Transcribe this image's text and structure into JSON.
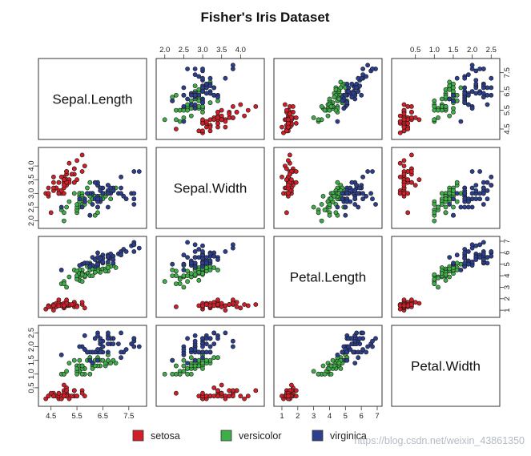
{
  "chart_data": {
    "type": "scatter",
    "subtype": "scatterplot-matrix",
    "title": "Fisher's Iris Dataset",
    "variables": [
      "Sepal.Length",
      "Sepal.Width",
      "Petal.Length",
      "Petal.Width"
    ],
    "ranges": {
      "Sepal.Length": [
        4.2,
        8.0
      ],
      "Sepal.Width": [
        1.9,
        4.5
      ],
      "Petal.Length": [
        0.8,
        7.0
      ],
      "Petal.Width": [
        0.0,
        2.6
      ]
    },
    "ticks": {
      "Sepal.Length": {
        "values": [
          4.5,
          5.5,
          6.5,
          7.5
        ],
        "labels": [
          "4.5",
          "5.5",
          "6.5",
          "7.5"
        ]
      },
      "Sepal.Width": {
        "values": [
          2.0,
          2.5,
          3.0,
          3.5,
          4.0
        ],
        "labels": [
          "2.0",
          "2.5",
          "3.0",
          "3.5",
          "4.0"
        ]
      },
      "Petal.Length": {
        "values": [
          1,
          2,
          3,
          4,
          5,
          6,
          7
        ],
        "labels": [
          "1",
          "2",
          "3",
          "4",
          "5",
          "6",
          "7"
        ]
      },
      "Petal.Width": {
        "values": [
          0.5,
          1.0,
          1.5,
          2.0,
          2.5
        ],
        "labels": [
          "0.5",
          "1.0",
          "1.5",
          "2.0",
          "2.5"
        ]
      }
    },
    "legend_position": "bottom",
    "series": [
      {
        "name": "setosa",
        "color": "#d21f27",
        "points": [
          [
            5.1,
            3.5,
            1.4,
            0.2
          ],
          [
            4.9,
            3.0,
            1.4,
            0.2
          ],
          [
            4.7,
            3.2,
            1.3,
            0.2
          ],
          [
            4.6,
            3.1,
            1.5,
            0.2
          ],
          [
            5.0,
            3.6,
            1.4,
            0.2
          ],
          [
            5.4,
            3.9,
            1.7,
            0.4
          ],
          [
            4.6,
            3.4,
            1.4,
            0.3
          ],
          [
            5.0,
            3.4,
            1.5,
            0.2
          ],
          [
            4.4,
            2.9,
            1.4,
            0.2
          ],
          [
            4.9,
            3.1,
            1.5,
            0.1
          ],
          [
            5.4,
            3.7,
            1.5,
            0.2
          ],
          [
            4.8,
            3.4,
            1.6,
            0.2
          ],
          [
            4.8,
            3.0,
            1.4,
            0.1
          ],
          [
            4.3,
            3.0,
            1.1,
            0.1
          ],
          [
            5.8,
            4.0,
            1.2,
            0.2
          ],
          [
            5.7,
            4.4,
            1.5,
            0.4
          ],
          [
            5.4,
            3.9,
            1.3,
            0.4
          ],
          [
            5.1,
            3.5,
            1.4,
            0.3
          ],
          [
            5.7,
            3.8,
            1.7,
            0.3
          ],
          [
            5.1,
            3.8,
            1.5,
            0.3
          ],
          [
            5.4,
            3.4,
            1.7,
            0.2
          ],
          [
            5.1,
            3.7,
            1.5,
            0.4
          ],
          [
            4.6,
            3.6,
            1.0,
            0.2
          ],
          [
            5.1,
            3.3,
            1.7,
            0.5
          ],
          [
            4.8,
            3.4,
            1.9,
            0.2
          ],
          [
            5.0,
            3.0,
            1.6,
            0.2
          ],
          [
            5.0,
            3.4,
            1.6,
            0.4
          ],
          [
            5.2,
            3.5,
            1.5,
            0.2
          ],
          [
            5.2,
            3.4,
            1.4,
            0.2
          ],
          [
            4.7,
            3.2,
            1.6,
            0.2
          ],
          [
            4.8,
            3.1,
            1.6,
            0.2
          ],
          [
            5.4,
            3.4,
            1.5,
            0.4
          ],
          [
            5.2,
            4.1,
            1.5,
            0.1
          ],
          [
            5.5,
            4.2,
            1.4,
            0.2
          ],
          [
            4.9,
            3.1,
            1.5,
            0.2
          ],
          [
            5.0,
            3.2,
            1.2,
            0.2
          ],
          [
            5.5,
            3.5,
            1.3,
            0.2
          ],
          [
            4.9,
            3.6,
            1.4,
            0.1
          ],
          [
            4.4,
            3.0,
            1.3,
            0.2
          ],
          [
            5.1,
            3.4,
            1.5,
            0.2
          ],
          [
            5.0,
            3.5,
            1.3,
            0.3
          ],
          [
            4.5,
            2.3,
            1.3,
            0.3
          ],
          [
            4.4,
            3.2,
            1.3,
            0.2
          ],
          [
            5.0,
            3.5,
            1.6,
            0.6
          ],
          [
            5.1,
            3.8,
            1.9,
            0.4
          ],
          [
            4.8,
            3.0,
            1.4,
            0.3
          ],
          [
            5.1,
            3.8,
            1.6,
            0.2
          ],
          [
            4.6,
            3.2,
            1.4,
            0.2
          ],
          [
            5.3,
            3.7,
            1.5,
            0.2
          ],
          [
            5.0,
            3.3,
            1.4,
            0.2
          ]
        ]
      },
      {
        "name": "versicolor",
        "color": "#3fae49",
        "points": [
          [
            7.0,
            3.2,
            4.7,
            1.4
          ],
          [
            6.4,
            3.2,
            4.5,
            1.5
          ],
          [
            6.9,
            3.1,
            4.9,
            1.5
          ],
          [
            5.5,
            2.3,
            4.0,
            1.3
          ],
          [
            6.5,
            2.8,
            4.6,
            1.5
          ],
          [
            5.7,
            2.8,
            4.5,
            1.3
          ],
          [
            6.3,
            3.3,
            4.7,
            1.6
          ],
          [
            4.9,
            2.4,
            3.3,
            1.0
          ],
          [
            6.6,
            2.9,
            4.6,
            1.3
          ],
          [
            5.2,
            2.7,
            3.9,
            1.4
          ],
          [
            5.0,
            2.0,
            3.5,
            1.0
          ],
          [
            5.9,
            3.0,
            4.2,
            1.5
          ],
          [
            6.0,
            2.2,
            4.0,
            1.0
          ],
          [
            6.1,
            2.9,
            4.7,
            1.4
          ],
          [
            5.6,
            2.9,
            3.6,
            1.3
          ],
          [
            6.7,
            3.1,
            4.4,
            1.4
          ],
          [
            5.6,
            3.0,
            4.5,
            1.5
          ],
          [
            5.8,
            2.7,
            4.1,
            1.0
          ],
          [
            6.2,
            2.2,
            4.5,
            1.5
          ],
          [
            5.6,
            2.5,
            3.9,
            1.1
          ],
          [
            5.9,
            3.2,
            4.8,
            1.8
          ],
          [
            6.1,
            2.8,
            4.0,
            1.3
          ],
          [
            6.3,
            2.5,
            4.9,
            1.5
          ],
          [
            6.1,
            2.8,
            4.7,
            1.2
          ],
          [
            6.4,
            2.9,
            4.3,
            1.3
          ],
          [
            6.6,
            3.0,
            4.4,
            1.4
          ],
          [
            6.8,
            2.8,
            4.8,
            1.4
          ],
          [
            6.7,
            3.0,
            5.0,
            1.7
          ],
          [
            6.0,
            2.9,
            4.5,
            1.5
          ],
          [
            5.7,
            2.6,
            3.5,
            1.0
          ],
          [
            5.5,
            2.4,
            3.8,
            1.1
          ],
          [
            5.5,
            2.4,
            3.7,
            1.0
          ],
          [
            5.8,
            2.7,
            3.9,
            1.2
          ],
          [
            6.0,
            2.7,
            5.1,
            1.6
          ],
          [
            5.4,
            3.0,
            4.5,
            1.5
          ],
          [
            6.0,
            3.4,
            4.5,
            1.6
          ],
          [
            6.7,
            3.1,
            4.7,
            1.5
          ],
          [
            6.3,
            2.3,
            4.4,
            1.3
          ],
          [
            5.6,
            3.0,
            4.1,
            1.3
          ],
          [
            5.5,
            2.5,
            4.0,
            1.3
          ],
          [
            5.5,
            2.6,
            4.4,
            1.2
          ],
          [
            6.1,
            3.0,
            4.6,
            1.4
          ],
          [
            5.8,
            2.6,
            4.0,
            1.2
          ],
          [
            5.0,
            2.3,
            3.3,
            1.0
          ],
          [
            5.6,
            2.7,
            4.2,
            1.3
          ],
          [
            5.7,
            3.0,
            4.2,
            1.2
          ],
          [
            5.7,
            2.9,
            4.2,
            1.3
          ],
          [
            6.2,
            2.9,
            4.3,
            1.3
          ],
          [
            5.1,
            2.5,
            3.0,
            1.1
          ],
          [
            5.7,
            2.8,
            4.1,
            1.3
          ]
        ]
      },
      {
        "name": "virginica",
        "color": "#2c3f8f",
        "points": [
          [
            6.3,
            3.3,
            6.0,
            2.5
          ],
          [
            5.8,
            2.7,
            5.1,
            1.9
          ],
          [
            7.1,
            3.0,
            5.9,
            2.1
          ],
          [
            6.3,
            2.9,
            5.6,
            1.8
          ],
          [
            6.5,
            3.0,
            5.8,
            2.2
          ],
          [
            7.6,
            3.0,
            6.6,
            2.1
          ],
          [
            4.9,
            2.5,
            4.5,
            1.7
          ],
          [
            7.3,
            2.9,
            6.3,
            1.8
          ],
          [
            6.7,
            2.5,
            5.8,
            1.8
          ],
          [
            7.2,
            3.6,
            6.1,
            2.5
          ],
          [
            6.5,
            3.2,
            5.1,
            2.0
          ],
          [
            6.4,
            2.7,
            5.3,
            1.9
          ],
          [
            6.8,
            3.0,
            5.5,
            2.1
          ],
          [
            5.7,
            2.5,
            5.0,
            2.0
          ],
          [
            5.8,
            2.8,
            5.1,
            2.4
          ],
          [
            6.4,
            3.2,
            5.3,
            2.3
          ],
          [
            6.5,
            3.0,
            5.5,
            1.8
          ],
          [
            7.7,
            3.8,
            6.7,
            2.2
          ],
          [
            7.7,
            2.6,
            6.9,
            2.3
          ],
          [
            6.0,
            2.2,
            5.0,
            1.5
          ],
          [
            6.9,
            3.2,
            5.7,
            2.3
          ],
          [
            5.6,
            2.8,
            4.9,
            2.0
          ],
          [
            7.7,
            2.8,
            6.7,
            2.0
          ],
          [
            6.3,
            2.7,
            4.9,
            1.8
          ],
          [
            6.7,
            3.3,
            5.7,
            2.1
          ],
          [
            7.2,
            3.2,
            6.0,
            1.8
          ],
          [
            6.2,
            2.8,
            4.8,
            1.8
          ],
          [
            6.1,
            3.0,
            4.9,
            1.8
          ],
          [
            6.4,
            2.8,
            5.6,
            2.1
          ],
          [
            7.2,
            3.0,
            5.8,
            1.6
          ],
          [
            7.4,
            2.8,
            6.1,
            1.9
          ],
          [
            7.9,
            3.8,
            6.4,
            2.0
          ],
          [
            6.4,
            2.8,
            5.6,
            2.2
          ],
          [
            6.3,
            2.8,
            5.1,
            1.5
          ],
          [
            6.1,
            2.6,
            5.6,
            1.4
          ],
          [
            7.7,
            3.0,
            6.1,
            2.3
          ],
          [
            6.3,
            3.4,
            5.6,
            2.4
          ],
          [
            6.4,
            3.1,
            5.5,
            1.8
          ],
          [
            6.0,
            3.0,
            4.8,
            1.8
          ],
          [
            6.9,
            3.1,
            5.4,
            2.1
          ],
          [
            6.7,
            3.1,
            5.6,
            2.4
          ],
          [
            6.9,
            3.1,
            5.1,
            2.3
          ],
          [
            5.8,
            2.7,
            5.1,
            1.9
          ],
          [
            6.8,
            3.2,
            5.9,
            2.3
          ],
          [
            6.7,
            3.3,
            5.7,
            2.5
          ],
          [
            6.7,
            3.0,
            5.2,
            2.3
          ],
          [
            6.3,
            2.5,
            5.0,
            1.9
          ],
          [
            6.5,
            3.0,
            5.2,
            2.0
          ],
          [
            6.2,
            3.4,
            5.4,
            2.3
          ],
          [
            5.9,
            3.0,
            5.1,
            1.8
          ]
        ]
      }
    ]
  },
  "watermark": "https://blog.csdn.net/weixin_43861350"
}
